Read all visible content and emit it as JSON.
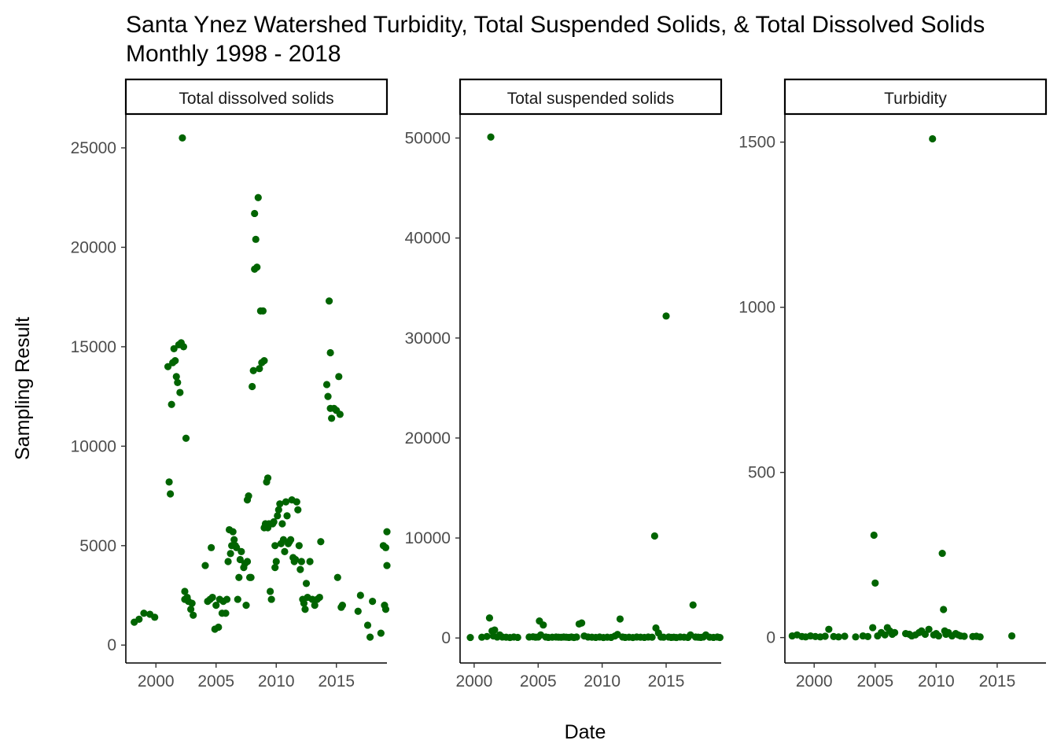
{
  "chart_data": {
    "type": "scatter",
    "title": "Santa Ynez Watershed Turbidity, Total Suspended Solids, & Total Dissolved Solids",
    "subtitle": "Monthly 1998 - 2018",
    "xlabel": "Date",
    "ylabel": "Sampling Result",
    "grid": false,
    "legend": "none",
    "point_color": "#006400",
    "x_ticks": [
      "2000",
      "2005",
      "2010",
      "2015"
    ],
    "panels": [
      {
        "name": "Total dissolved solids",
        "xlim": [
          1997.5,
          2019.2
        ],
        "ylim": [
          -900,
          26700
        ],
        "y_ticks": [
          0,
          5000,
          10000,
          15000,
          20000,
          25000
        ],
        "points": [
          [
            1998.2,
            1150
          ],
          [
            1998.6,
            1300
          ],
          [
            1999.0,
            1600
          ],
          [
            1999.5,
            1550
          ],
          [
            1999.9,
            1400
          ],
          [
            2001.0,
            14000
          ],
          [
            2001.1,
            8200
          ],
          [
            2001.2,
            7600
          ],
          [
            2001.3,
            12100
          ],
          [
            2001.4,
            14200
          ],
          [
            2001.5,
            14900
          ],
          [
            2001.6,
            14300
          ],
          [
            2001.7,
            13500
          ],
          [
            2001.8,
            13200
          ],
          [
            2001.9,
            15100
          ],
          [
            2002.0,
            12700
          ],
          [
            2002.1,
            15200
          ],
          [
            2002.2,
            25500
          ],
          [
            2002.3,
            15000
          ],
          [
            2002.4,
            2700
          ],
          [
            2002.4,
            2300
          ],
          [
            2002.5,
            10400
          ],
          [
            2002.6,
            2400
          ],
          [
            2002.7,
            2200
          ],
          [
            2002.9,
            1800
          ],
          [
            2003.0,
            2100
          ],
          [
            2003.1,
            1500
          ],
          [
            2004.1,
            4000
          ],
          [
            2004.3,
            2200
          ],
          [
            2004.5,
            2300
          ],
          [
            2004.6,
            4900
          ],
          [
            2004.7,
            2400
          ],
          [
            2004.9,
            800
          ],
          [
            2005.0,
            2000
          ],
          [
            2005.2,
            900
          ],
          [
            2005.3,
            2300
          ],
          [
            2005.5,
            1600
          ],
          [
            2005.6,
            2200
          ],
          [
            2005.8,
            1600
          ],
          [
            2005.9,
            2300
          ],
          [
            2006.0,
            4200
          ],
          [
            2006.1,
            5800
          ],
          [
            2006.2,
            4600
          ],
          [
            2006.3,
            5000
          ],
          [
            2006.4,
            5700
          ],
          [
            2006.5,
            5300
          ],
          [
            2006.6,
            5000
          ],
          [
            2006.7,
            4900
          ],
          [
            2006.8,
            2300
          ],
          [
            2006.9,
            3400
          ],
          [
            2007.0,
            4300
          ],
          [
            2007.1,
            4700
          ],
          [
            2007.3,
            3900
          ],
          [
            2007.4,
            4100
          ],
          [
            2007.5,
            2000
          ],
          [
            2007.6,
            4200
          ],
          [
            2007.6,
            7300
          ],
          [
            2007.7,
            7500
          ],
          [
            2007.8,
            3400
          ],
          [
            2007.9,
            3400
          ],
          [
            2008.0,
            13000
          ],
          [
            2008.1,
            13800
          ],
          [
            2008.2,
            18900
          ],
          [
            2008.2,
            21700
          ],
          [
            2008.3,
            20400
          ],
          [
            2008.4,
            19000
          ],
          [
            2008.5,
            22500
          ],
          [
            2008.6,
            13900
          ],
          [
            2008.7,
            16800
          ],
          [
            2008.8,
            14200
          ],
          [
            2008.9,
            16800
          ],
          [
            2009.0,
            14300
          ],
          [
            2009.0,
            5900
          ],
          [
            2009.1,
            6100
          ],
          [
            2009.2,
            8200
          ],
          [
            2009.3,
            8400
          ],
          [
            2009.3,
            5900
          ],
          [
            2009.4,
            6100
          ],
          [
            2009.5,
            2700
          ],
          [
            2009.6,
            2300
          ],
          [
            2009.7,
            6100
          ],
          [
            2009.8,
            6200
          ],
          [
            2009.9,
            5000
          ],
          [
            2009.9,
            3900
          ],
          [
            2010.0,
            4200
          ],
          [
            2010.1,
            6500
          ],
          [
            2010.2,
            6800
          ],
          [
            2010.3,
            7100
          ],
          [
            2010.4,
            5100
          ],
          [
            2010.5,
            6100
          ],
          [
            2010.6,
            5300
          ],
          [
            2010.7,
            4700
          ],
          [
            2010.8,
            7200
          ],
          [
            2010.9,
            6500
          ],
          [
            2011.0,
            5100
          ],
          [
            2011.1,
            5200
          ],
          [
            2011.2,
            5300
          ],
          [
            2011.3,
            7300
          ],
          [
            2011.4,
            4400
          ],
          [
            2011.5,
            4200
          ],
          [
            2011.6,
            4300
          ],
          [
            2011.7,
            7200
          ],
          [
            2011.8,
            6800
          ],
          [
            2011.9,
            5000
          ],
          [
            2012.0,
            3800
          ],
          [
            2012.1,
            4200
          ],
          [
            2012.2,
            2300
          ],
          [
            2012.3,
            2100
          ],
          [
            2012.4,
            1800
          ],
          [
            2012.5,
            3100
          ],
          [
            2012.6,
            2400
          ],
          [
            2012.8,
            4200
          ],
          [
            2013.0,
            2300
          ],
          [
            2013.2,
            2000
          ],
          [
            2013.4,
            2300
          ],
          [
            2013.6,
            2400
          ],
          [
            2013.7,
            5200
          ],
          [
            2014.2,
            13100
          ],
          [
            2014.3,
            12500
          ],
          [
            2014.4,
            17300
          ],
          [
            2014.5,
            11900
          ],
          [
            2014.5,
            14700
          ],
          [
            2014.6,
            11400
          ],
          [
            2014.8,
            11900
          ],
          [
            2015.0,
            11800
          ],
          [
            2015.1,
            3400
          ],
          [
            2015.2,
            13500
          ],
          [
            2015.3,
            11600
          ],
          [
            2015.5,
            2000
          ],
          [
            2015.4,
            1900
          ],
          [
            2016.8,
            1700
          ],
          [
            2017.0,
            2500
          ],
          [
            2017.6,
            1000
          ],
          [
            2017.8,
            400
          ],
          [
            2018.0,
            2200
          ],
          [
            2018.7,
            600
          ],
          [
            2018.9,
            5000
          ],
          [
            2019.0,
            2000
          ],
          [
            2019.1,
            1800
          ],
          [
            2019.1,
            4900
          ],
          [
            2019.2,
            5700
          ],
          [
            2019.2,
            4000
          ]
        ]
      },
      {
        "name": "Total suspended solids",
        "xlim": [
          1998.9,
          2019.3
        ],
        "ylim": [
          -2500,
          52400
        ],
        "y_ticks": [
          0,
          10000,
          20000,
          30000,
          40000,
          50000
        ],
        "points": [
          [
            1999.7,
            50
          ],
          [
            2000.6,
            80
          ],
          [
            2001.0,
            150
          ],
          [
            2001.2,
            2000
          ],
          [
            2001.3,
            50100
          ],
          [
            2001.4,
            700
          ],
          [
            2001.5,
            200
          ],
          [
            2001.6,
            800
          ],
          [
            2001.8,
            100
          ],
          [
            2002.0,
            300
          ],
          [
            2002.2,
            100
          ],
          [
            2002.5,
            80
          ],
          [
            2002.8,
            50
          ],
          [
            2003.1,
            100
          ],
          [
            2003.4,
            60
          ],
          [
            2004.3,
            100
          ],
          [
            2004.6,
            120
          ],
          [
            2004.8,
            80
          ],
          [
            2005.0,
            100
          ],
          [
            2005.1,
            1700
          ],
          [
            2005.2,
            300
          ],
          [
            2005.4,
            1300
          ],
          [
            2005.6,
            100
          ],
          [
            2005.8,
            60
          ],
          [
            2006.1,
            80
          ],
          [
            2006.4,
            100
          ],
          [
            2006.6,
            80
          ],
          [
            2006.8,
            70
          ],
          [
            2007.0,
            100
          ],
          [
            2007.2,
            80
          ],
          [
            2007.4,
            60
          ],
          [
            2007.6,
            100
          ],
          [
            2007.8,
            50
          ],
          [
            2008.0,
            100
          ],
          [
            2008.2,
            1400
          ],
          [
            2008.4,
            1500
          ],
          [
            2008.6,
            200
          ],
          [
            2008.9,
            100
          ],
          [
            2009.2,
            80
          ],
          [
            2009.5,
            60
          ],
          [
            2009.8,
            100
          ],
          [
            2010.1,
            50
          ],
          [
            2010.4,
            80
          ],
          [
            2010.7,
            60
          ],
          [
            2011.0,
            200
          ],
          [
            2011.2,
            350
          ],
          [
            2011.4,
            1900
          ],
          [
            2011.6,
            100
          ],
          [
            2011.8,
            60
          ],
          [
            2012.1,
            80
          ],
          [
            2012.4,
            50
          ],
          [
            2012.7,
            100
          ],
          [
            2013.0,
            80
          ],
          [
            2013.3,
            60
          ],
          [
            2013.6,
            100
          ],
          [
            2013.9,
            80
          ],
          [
            2014.1,
            10200
          ],
          [
            2014.2,
            1000
          ],
          [
            2014.4,
            500
          ],
          [
            2014.6,
            100
          ],
          [
            2014.8,
            80
          ],
          [
            2015.0,
            32200
          ],
          [
            2015.2,
            100
          ],
          [
            2015.4,
            60
          ],
          [
            2015.6,
            80
          ],
          [
            2015.8,
            50
          ],
          [
            2016.1,
            100
          ],
          [
            2016.4,
            80
          ],
          [
            2016.7,
            60
          ],
          [
            2016.9,
            300
          ],
          [
            2017.1,
            3300
          ],
          [
            2017.3,
            100
          ],
          [
            2017.5,
            80
          ],
          [
            2017.7,
            60
          ],
          [
            2017.9,
            100
          ],
          [
            2018.1,
            300
          ],
          [
            2018.4,
            80
          ],
          [
            2018.7,
            60
          ],
          [
            2019.0,
            100
          ],
          [
            2019.2,
            50
          ]
        ]
      },
      {
        "name": "Turbidity",
        "xlim": [
          1997.6,
          2019.0
        ],
        "ylim": [
          -77,
          1585
        ],
        "y_ticks": [
          0,
          500,
          1000,
          1500
        ],
        "points": [
          [
            1998.2,
            5
          ],
          [
            1998.6,
            8
          ],
          [
            1999.0,
            3
          ],
          [
            1999.3,
            2
          ],
          [
            1999.7,
            5
          ],
          [
            2000.1,
            3
          ],
          [
            2000.5,
            2
          ],
          [
            2000.9,
            4
          ],
          [
            2001.2,
            25
          ],
          [
            2001.6,
            3
          ],
          [
            2002.0,
            2
          ],
          [
            2002.5,
            4
          ],
          [
            2003.4,
            2
          ],
          [
            2004.0,
            5
          ],
          [
            2004.4,
            3
          ],
          [
            2004.8,
            30
          ],
          [
            2004.9,
            310
          ],
          [
            2005.0,
            165
          ],
          [
            2005.2,
            5
          ],
          [
            2005.5,
            15
          ],
          [
            2005.8,
            8
          ],
          [
            2006.0,
            30
          ],
          [
            2006.2,
            20
          ],
          [
            2006.4,
            10
          ],
          [
            2006.6,
            15
          ],
          [
            2007.5,
            12
          ],
          [
            2007.8,
            10
          ],
          [
            2008.0,
            5
          ],
          [
            2008.3,
            8
          ],
          [
            2008.6,
            15
          ],
          [
            2008.8,
            20
          ],
          [
            2009.1,
            10
          ],
          [
            2009.4,
            25
          ],
          [
            2009.7,
            1510
          ],
          [
            2009.8,
            8
          ],
          [
            2010.0,
            12
          ],
          [
            2010.2,
            5
          ],
          [
            2010.5,
            255
          ],
          [
            2010.6,
            85
          ],
          [
            2010.7,
            20
          ],
          [
            2010.8,
            10
          ],
          [
            2011.0,
            15
          ],
          [
            2011.3,
            5
          ],
          [
            2011.6,
            12
          ],
          [
            2011.8,
            8
          ],
          [
            2012.0,
            5
          ],
          [
            2012.3,
            4
          ],
          [
            2013.0,
            3
          ],
          [
            2013.3,
            4
          ],
          [
            2013.6,
            2
          ],
          [
            2016.2,
            5
          ]
        ]
      }
    ]
  }
}
